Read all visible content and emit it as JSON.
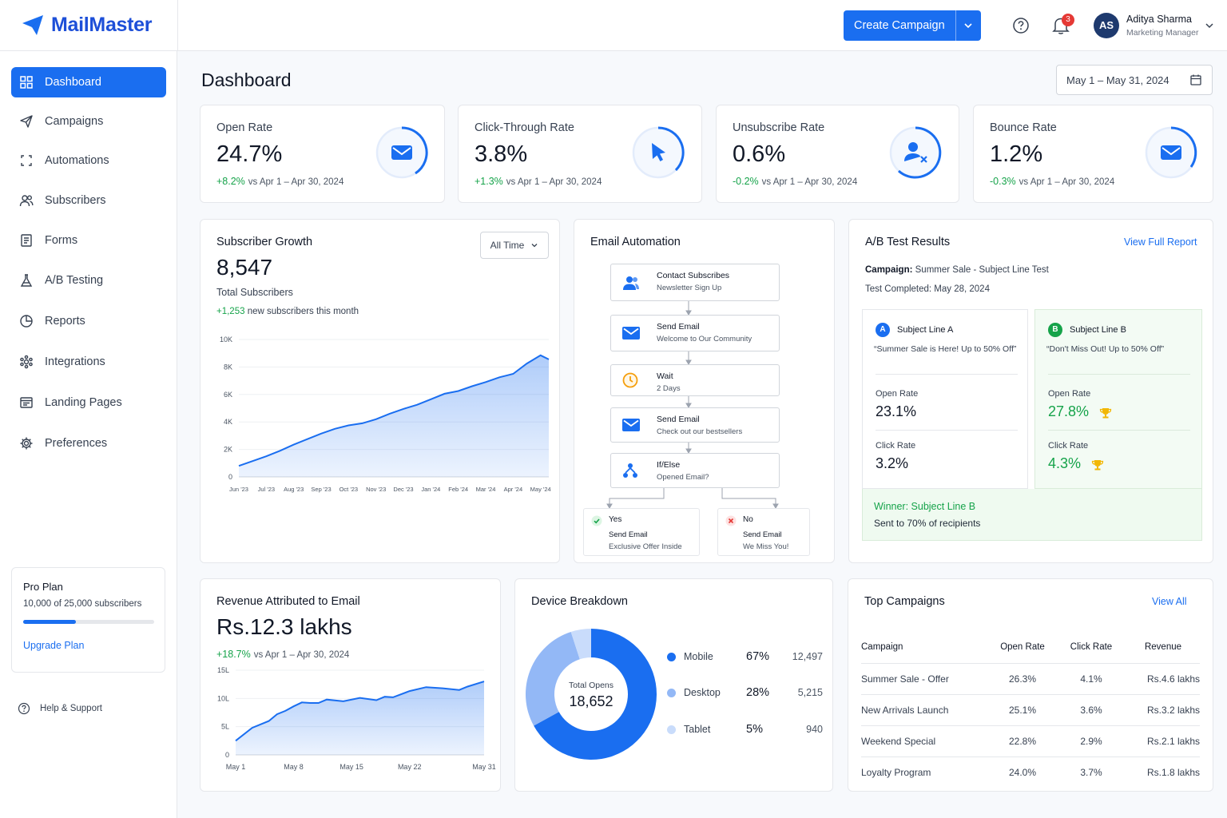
{
  "app": {
    "name": "MailMaster"
  },
  "header": {
    "create_label": "Create Campaign",
    "notifications": "3",
    "user": {
      "initials": "AS",
      "name": "Aditya Sharma",
      "role": "Marketing Manager"
    }
  },
  "sidebar": {
    "items": [
      {
        "label": "Dashboard",
        "icon": "grid-icon",
        "active": true
      },
      {
        "label": "Campaigns",
        "icon": "send-icon"
      },
      {
        "label": "Automations",
        "icon": "automation-icon"
      },
      {
        "label": "Subscribers",
        "icon": "users-icon"
      },
      {
        "label": "Forms",
        "icon": "form-icon"
      },
      {
        "label": "A/B Testing",
        "icon": "flask-icon"
      },
      {
        "label": "Reports",
        "icon": "pie-icon"
      },
      {
        "label": "Integrations",
        "icon": "integration-icon"
      },
      {
        "label": "Landing Pages",
        "icon": "page-icon"
      },
      {
        "label": "Preferences",
        "icon": "gear-icon"
      }
    ],
    "plan": {
      "title": "Pro Plan",
      "usage": "10,000 of 25,000 subscribers",
      "used_fraction": 0.4,
      "upgrade": "Upgrade Plan"
    },
    "help": "Help & Support"
  },
  "main": {
    "title": "Dashboard",
    "date_range": "May 1 – May 31, 2024"
  },
  "kpis": [
    {
      "title": "Open Rate",
      "value": "24.7%",
      "delta": "+8.2%",
      "delta_color": "#16a34a",
      "compare": "vs Apr 1 – Apr 30, 2024",
      "icon": "mail-icon"
    },
    {
      "title": "Click-Through Rate",
      "value": "3.8%",
      "delta": "+1.3%",
      "delta_color": "#16a34a",
      "compare": "vs Apr 1 – Apr 30, 2024",
      "icon": "cursor-icon"
    },
    {
      "title": "Unsubscribe Rate",
      "value": "0.6%",
      "delta": "-0.2%",
      "delta_color": "#16a34a",
      "compare": "vs Apr 1 – Apr 30, 2024",
      "icon": "user-remove-icon"
    },
    {
      "title": "Bounce Rate",
      "value": "1.2%",
      "delta": "-0.3%",
      "delta_color": "#16a34a",
      "compare": "vs Apr 1 – Apr 30, 2024",
      "icon": "mail-icon"
    }
  ],
  "subscriber_growth": {
    "title": "Subscriber Growth",
    "filter": "All Time",
    "total": "8,547",
    "total_label": "Total Subscribers",
    "new_count": "+1,253",
    "new_label": "new subscribers this month"
  },
  "automation": {
    "title": "Email Automation",
    "steps": [
      {
        "title": "Contact Subscribes",
        "sub": "Newsletter Sign Up",
        "icon": "users-icon"
      },
      {
        "title": "Send Email",
        "sub": "Welcome to Our Community",
        "icon": "mail-icon"
      },
      {
        "title": "Wait",
        "sub": "2 Days",
        "icon": "clock-icon"
      },
      {
        "title": "Send Email",
        "sub": "Check out our bestsellers",
        "icon": "mail-icon"
      },
      {
        "title": "If/Else",
        "sub": "Opened Email?",
        "icon": "branch-icon"
      }
    ],
    "branches": [
      {
        "title": "Yes",
        "action": "Send Email",
        "sub": "Exclusive Offer Inside"
      },
      {
        "title": "No",
        "action": "Send Email",
        "sub": "We Miss You!"
      }
    ]
  },
  "ab_test": {
    "title": "A/B Test Results",
    "report_link": "View Full Report",
    "campaign_label": "Campaign:",
    "campaign": "Summer Sale - Subject Line Test",
    "completed": "Test Completed: May 28, 2024",
    "variants": [
      {
        "letter": "A",
        "name": "Subject Line A",
        "subject": "“Summer Sale is Here! Up to 50% Off”",
        "open_label": "Open Rate",
        "open": "23.1%",
        "click_label": "Click Rate",
        "click": "3.2%"
      },
      {
        "letter": "B",
        "name": "Subject Line B",
        "subject": "“Don't Miss Out! Up to 50% Off”",
        "open_label": "Open Rate",
        "open": "27.8%",
        "click_label": "Click Rate",
        "click": "4.3%"
      }
    ],
    "winner": "Winner: Subject Line B",
    "winner_sub": "Sent to 70% of recipients"
  },
  "revenue": {
    "title": "Revenue Attributed to Email",
    "value": "Rs.12.3 lakhs",
    "delta": "+18.7%",
    "compare": "vs Apr 1 – Apr 30, 2024"
  },
  "devices": {
    "title": "Device Breakdown",
    "center_label": "Total Opens",
    "center_value": "18,652",
    "rows": [
      {
        "name": "Mobile",
        "pct": "67%",
        "count": "12,497",
        "color": "#1a6ef0"
      },
      {
        "name": "Desktop",
        "pct": "28%",
        "count": "5,215",
        "color": "#93b8f6"
      },
      {
        "name": "Tablet",
        "pct": "5%",
        "count": "940",
        "color": "#c9dcfb"
      }
    ]
  },
  "top_campaigns": {
    "title": "Top Campaigns",
    "view_all": "View All",
    "columns": [
      "Campaign",
      "Open Rate",
      "Click Rate",
      "Revenue"
    ],
    "rows": [
      [
        "Summer Sale - Offer",
        "26.3%",
        "4.1%",
        "Rs.4.6 lakhs"
      ],
      [
        "New Arrivals Launch",
        "25.1%",
        "3.6%",
        "Rs.3.2 lakhs"
      ],
      [
        "Weekend Special",
        "22.8%",
        "2.9%",
        "Rs.2.1 lakhs"
      ],
      [
        "Loyalty Program",
        "24.0%",
        "3.7%",
        "Rs.1.8 lakhs"
      ]
    ]
  },
  "chart_data": [
    {
      "type": "area",
      "title": "",
      "categories": [
        "Jun '23",
        "Jul '23",
        "Aug '23",
        "Sep '23",
        "Oct '23",
        "Nov '23",
        "Dec '23",
        "Jan '24",
        "Feb '24",
        "Mar '24",
        "Apr '24",
        "May '24"
      ],
      "yticks": [
        "0",
        "2K",
        "4K",
        "6K",
        "8K",
        "10K"
      ],
      "ylim": [
        0,
        10000
      ],
      "x": [
        0,
        0.5,
        1,
        1.5,
        2,
        2.5,
        3,
        3.5,
        4,
        4.5,
        5,
        5.5,
        6,
        6.5,
        7,
        7.5,
        8,
        8.5,
        9,
        9.5,
        10,
        10.5,
        11,
        11.3
      ],
      "values": [
        800,
        1150,
        1500,
        1900,
        2350,
        2750,
        3150,
        3500,
        3750,
        3900,
        4200,
        4600,
        4950,
        5250,
        5650,
        6050,
        6250,
        6600,
        6900,
        7250,
        7500,
        8250,
        8850,
        8550
      ]
    },
    {
      "type": "area",
      "title": "",
      "categories": [
        "May 1",
        "May 8",
        "May 15",
        "May 22",
        "May 31"
      ],
      "yticks": [
        "0",
        "5L",
        "10L",
        "15L"
      ],
      "ylim": [
        0,
        15
      ],
      "x": [
        1,
        3,
        5,
        6,
        7,
        8,
        9,
        10,
        11,
        12,
        14,
        16,
        18,
        19,
        20,
        22,
        24,
        26,
        28,
        29,
        31
      ],
      "values": [
        2.5,
        4.8,
        6.0,
        7.2,
        7.8,
        8.6,
        9.3,
        9.2,
        9.2,
        9.8,
        9.5,
        10.1,
        9.7,
        10.3,
        10.2,
        11.3,
        12.0,
        11.8,
        11.5,
        12.1,
        13.0
      ]
    },
    {
      "type": "pie",
      "title": "",
      "categories": [
        "Mobile",
        "Desktop",
        "Tablet"
      ],
      "values": [
        67,
        28,
        5
      ]
    }
  ]
}
